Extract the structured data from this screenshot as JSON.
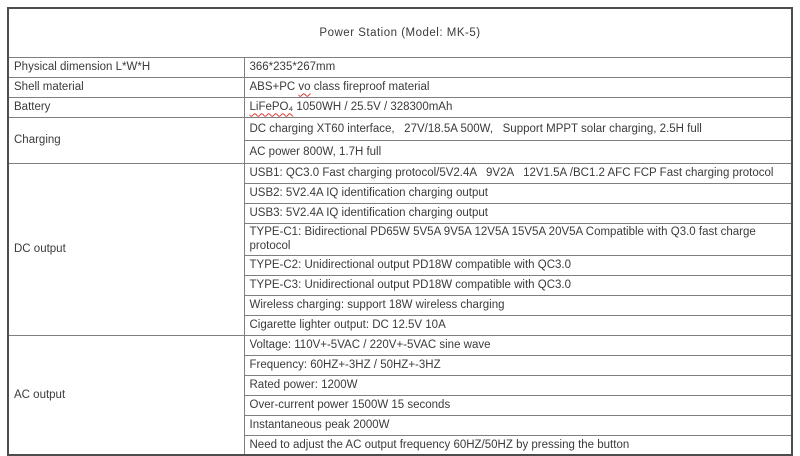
{
  "title": "Power Station (Model: MK-5)",
  "colors": {
    "outer_border": "#4d4d4d",
    "inner_border": "#7f7f7f",
    "text": "#3b3b3b",
    "spellcheck_underline": "#d83931"
  },
  "table": {
    "sections": [
      {
        "label": "Physical dimension L*W*H",
        "rows": [
          {
            "text": "366*235*267mm"
          }
        ]
      },
      {
        "label": "Shell material",
        "rows": [
          {
            "pre": "ABS+PC ",
            "marked": "vo",
            "post": " class fireproof material"
          }
        ]
      },
      {
        "label": "Battery",
        "rows": [
          {
            "pre": "",
            "marked": "LiFePO₄",
            "post": " 1050WH / 25.5V / 328300mAh"
          }
        ]
      },
      {
        "label": "Charging",
        "rows": [
          {
            "text": "DC charging XT60 interface,   27V/18.5A 500W,   Support MPPT solar charging, 2.5H full"
          },
          {
            "text": "AC power 800W, 1.7H full"
          }
        ]
      },
      {
        "label": "DC output",
        "rows": [
          {
            "text": "USB1: QC3.0 Fast charging protocol/5V2.4A   9V2A   12V1.5A /BC1.2 AFC FCP Fast charging protocol"
          },
          {
            "text": "USB2: 5V2.4A IQ identification charging output"
          },
          {
            "text": "USB3: 5V2.4A IQ identification charging output"
          },
          {
            "text": "TYPE-C1: Bidirectional PD65W 5V5A 9V5A 12V5A 15V5A 20V5A Compatible with Q3.0 fast charge protocol"
          },
          {
            "text": "TYPE-C2: Unidirectional output PD18W compatible with QC3.0"
          },
          {
            "text": "TYPE-C3: Unidirectional output PD18W compatible with QC3.0"
          },
          {
            "text": "Wireless charging: support 18W wireless charging"
          },
          {
            "text": "Cigarette lighter output: DC 12.5V 10A"
          }
        ]
      },
      {
        "label": "AC output",
        "rows": [
          {
            "text": "Voltage: 110V+-5VAC / 220V+-5VAC sine wave"
          },
          {
            "text": "Frequency: 60HZ+-3HZ / 50HZ+-3HZ"
          },
          {
            "text": "Rated power: 1200W"
          },
          {
            "text": "Over-current power 1500W 15 seconds"
          },
          {
            "text": "Instantaneous peak 2000W"
          },
          {
            "text": "Need to adjust the AC output frequency 60HZ/50HZ by pressing the button"
          }
        ]
      }
    ]
  }
}
